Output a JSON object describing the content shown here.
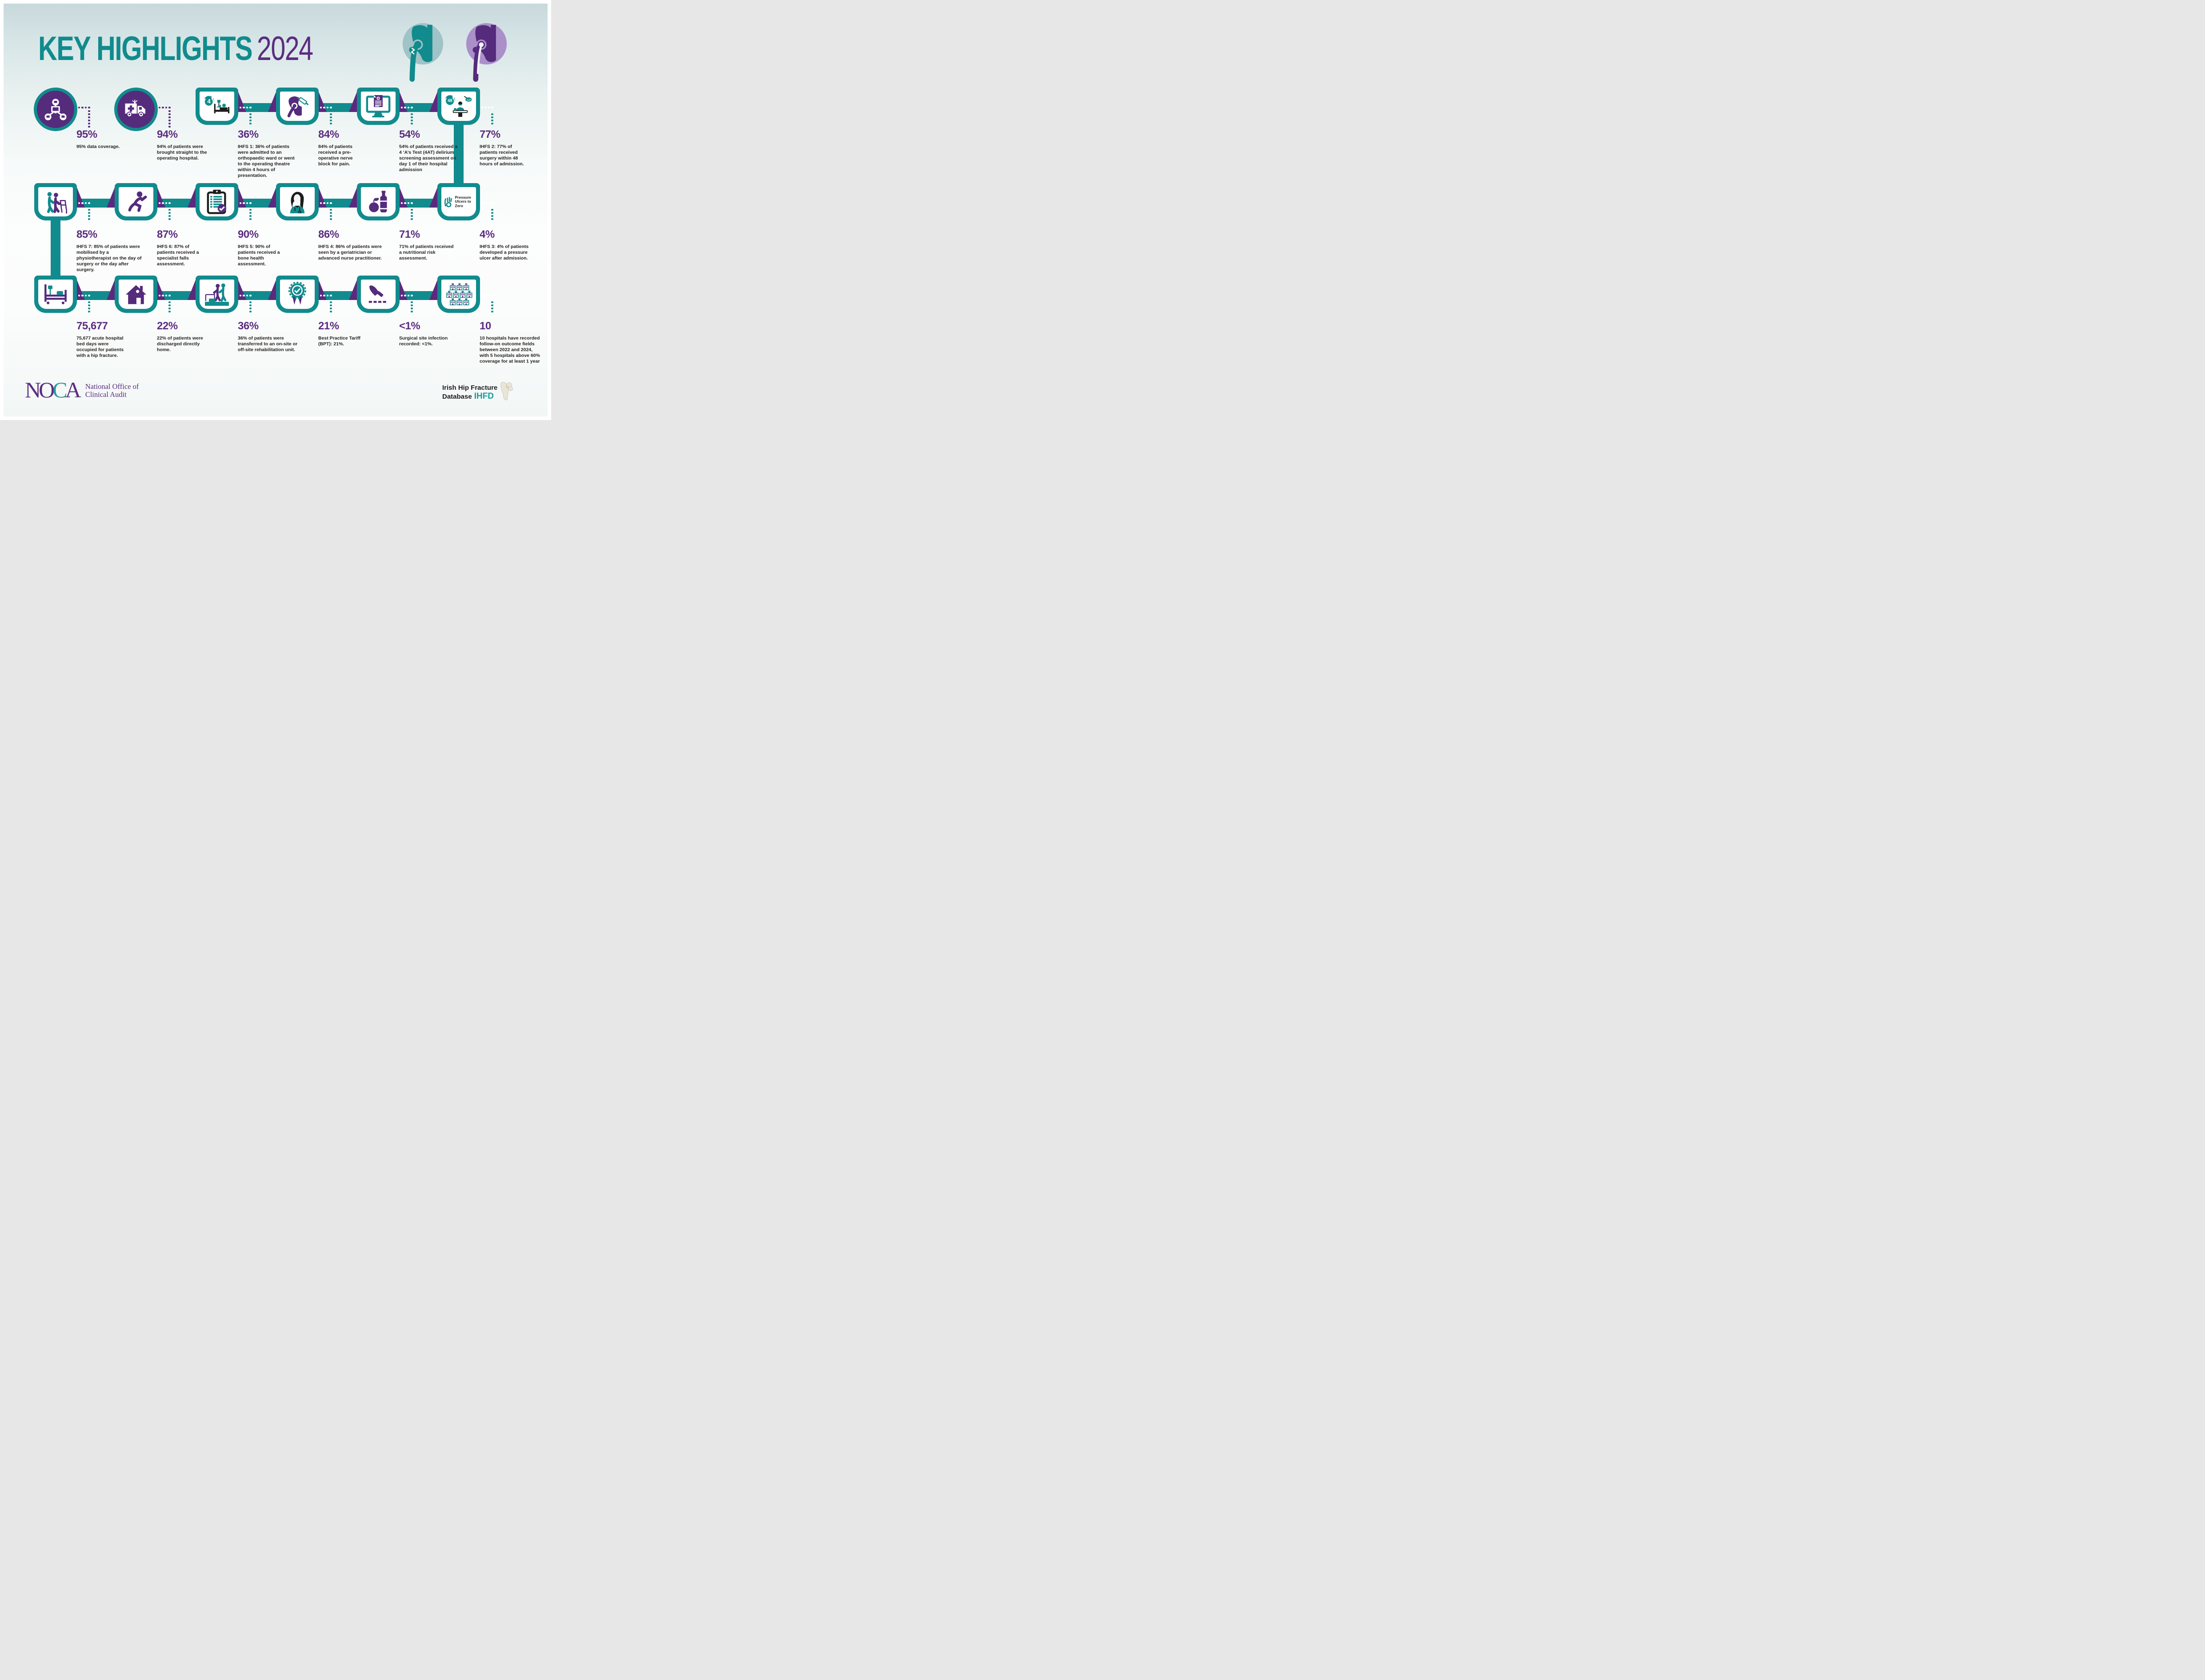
{
  "title": {
    "main": "KEY HIGHLIGHTS",
    "year": "2024"
  },
  "colors": {
    "teal": "#118b8d",
    "purple": "#5b2c80",
    "dark_purple": "#552b7c",
    "text": "#262220",
    "light_teal_hip": "#9fc3c6",
    "light_purple_hip": "#ab8fc9",
    "background_top": "#c8d9dc",
    "white": "#ffffff"
  },
  "header_icons": [
    {
      "name": "hip-fracture-icon"
    },
    {
      "name": "hip-implant-icon"
    }
  ],
  "items": [
    {
      "name": "data-coverage",
      "shape": "circle",
      "icon": "network-icon",
      "stat": "95%",
      "desc": "95% data coverage."
    },
    {
      "name": "ambulance-transfer",
      "shape": "circle",
      "icon": "ambulance-icon",
      "stat": "94%",
      "desc": "94% of patients were brought straight to the operating hospital."
    },
    {
      "name": "four-hour-admission",
      "shape": "shield",
      "icon": "four-hour-bed-icon",
      "stat": "36%",
      "desc": "IHFS 1: 36% of patients were admitted to an orthopaedic ward or went to the operating theatre within 4 hours of presentation."
    },
    {
      "name": "nerve-block",
      "shape": "shield",
      "icon": "hip-syringe-icon",
      "stat": "84%",
      "desc": "84% of patients received a pre-operative nerve block for pain."
    },
    {
      "name": "delirium-screening",
      "shape": "shield",
      "icon": "monitor-document-icon",
      "stat": "54%",
      "desc": "54% of patients received a 4 ‘A’s Test (4AT) delirium screening assessment on day 1 of their hospital admission"
    },
    {
      "name": "surgery-48-hours",
      "shape": "shield",
      "icon": "forty-eight-hour-surgery-icon",
      "stat": "77%",
      "desc": "IHFS 2: 77% of patients received surgery within 48 hours of admission."
    },
    {
      "name": "mobilisation",
      "shape": "shield",
      "icon": "walker-icon",
      "stat": "85%",
      "desc": "IHFS 7: 85% of patients were mobilised by a physiotherapist on the day of surgery or the day after surgery."
    },
    {
      "name": "falls-assessment",
      "shape": "shield",
      "icon": "falling-person-icon",
      "stat": "87%",
      "desc": "IHFS 6: 87% of patients received a specialist falls assessment."
    },
    {
      "name": "bone-health",
      "shape": "shield",
      "icon": "clipboard-check-icon",
      "stat": "90%",
      "desc": "IHFS 5: 90% of patients received a bone health assessment."
    },
    {
      "name": "geriatrician-review",
      "shape": "shield",
      "icon": "nurse-icon",
      "stat": "86%",
      "desc": "IHFS 4: 86% of patients were seen by a geriatrician or advanced nurse practitioner."
    },
    {
      "name": "nutrition-risk",
      "shape": "shield",
      "icon": "nutrition-icon",
      "stat": "71%",
      "desc": "71% of patients received a nutritional risk assessment."
    },
    {
      "name": "pressure-ulcers",
      "shape": "shield-label",
      "icon": "ok-hand-icon",
      "label": "Pressure Ulcers to Zero",
      "stat": "4%",
      "desc": "IHFS 3: 4% of patients developed a pressure ulcer after admission."
    },
    {
      "name": "bed-days",
      "shape": "shield",
      "icon": "hospital-bed-icon",
      "stat": "75,677",
      "desc": "75,677 acute hospital bed days were occupied for patients with a hip fracture."
    },
    {
      "name": "discharged-home",
      "shape": "shield",
      "icon": "home-icon",
      "stat": "22%",
      "desc": "22% of patients were discharged directly home."
    },
    {
      "name": "rehabilitation",
      "shape": "shield",
      "icon": "rehabilitation-icon",
      "stat": "36%",
      "desc": "36% of patients were transferred to an on-site or off-site rehabilitation unit."
    },
    {
      "name": "best-practice-tariff",
      "shape": "shield",
      "icon": "award-rosette-icon",
      "stat": "21%",
      "desc": "Best Practice Tariff (BPT): 21%."
    },
    {
      "name": "surgical-site-infection",
      "shape": "shield",
      "icon": "scalpel-icon",
      "stat": "<1%",
      "desc": "Surgical site infection recorded: <1%."
    },
    {
      "name": "follow-on-hospitals",
      "shape": "shield",
      "icon": "hospitals-grid-icon",
      "stat": "10",
      "desc": "10 hospitals have recorded follow-on outcome fields between 2022 and 2024, with 5 hospitals above 60% coverage for at least 1 year"
    }
  ],
  "footer": {
    "noca": {
      "logo": "NOCA",
      "line1": "National Office of",
      "line2": "Clinical Audit"
    },
    "ihfd": {
      "line1": "Irish Hip Fracture",
      "line2": "Database",
      "abbr": "IHFD"
    }
  }
}
